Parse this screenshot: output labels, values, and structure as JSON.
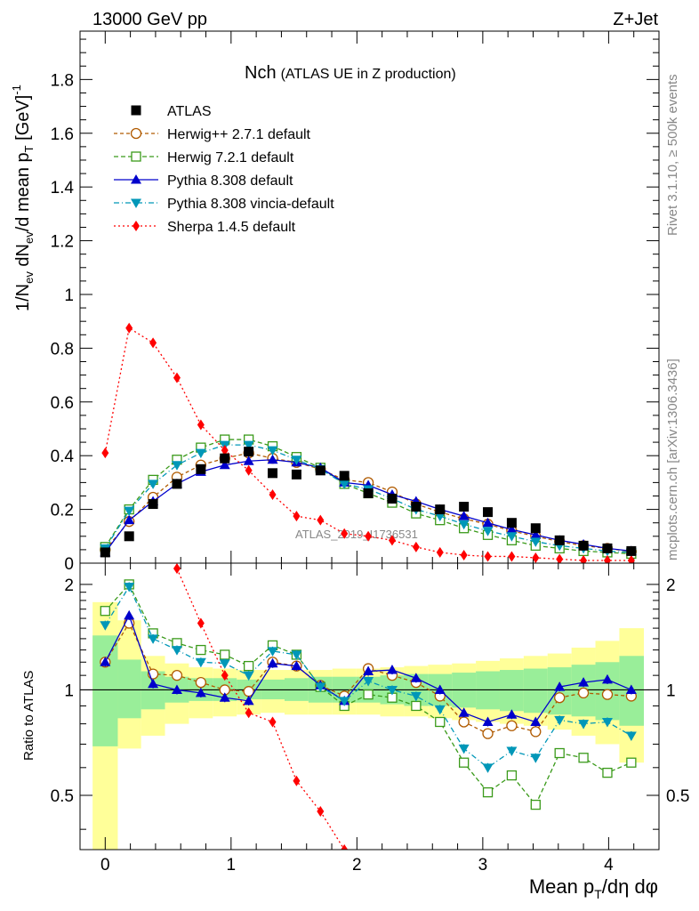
{
  "header": {
    "left": "13000 GeV pp",
    "right": "Z+Jet"
  },
  "side": {
    "rivet": "Rivet 3.1.10, ≥ 500k events",
    "mcplots": "mcplots.cern.ch [arXiv:1306.3436]"
  },
  "watermark": "ATLAS_2019_I1736531",
  "chart_data": {
    "type": "scatter",
    "title": "Nch",
    "subtitle": "(ATLAS UE in Z production)",
    "xlabel": "Mean pT/dη dφ",
    "ylabel": "1/Nev dNev/d mean pT [GeV]^-1",
    "ratio_ylabel": "Ratio to ATLAS",
    "xlim": [
      -0.2,
      4.4
    ],
    "ylim": [
      0,
      1.98
    ],
    "ratio_ylim": [
      0.35,
      2.3
    ],
    "x_ticks": [
      "0",
      "1",
      "2",
      "3",
      "4"
    ],
    "y_ticks": [
      "0",
      "0.2",
      "0.4",
      "0.6",
      "0.8",
      "1",
      "1.2",
      "1.4",
      "1.6",
      "1.8"
    ],
    "ratio_ticks": [
      "0.5",
      "1",
      "2"
    ],
    "x": [
      0,
      0.19,
      0.38,
      0.57,
      0.76,
      0.95,
      1.14,
      1.33,
      1.52,
      1.71,
      1.9,
      2.09,
      2.28,
      2.47,
      2.66,
      2.85,
      3.04,
      3.23,
      3.42,
      3.61,
      3.8,
      3.99,
      4.18
    ],
    "series": [
      {
        "name": "ATLAS",
        "color": "#000000",
        "style": "data",
        "values": [
          0.04,
          0.1,
          0.22,
          0.295,
          0.35,
          0.39,
          0.415,
          0.335,
          0.33,
          0.345,
          0.325,
          0.26,
          0.24,
          0.21,
          0.2,
          0.21,
          0.19,
          0.15,
          0.13,
          0.085,
          0.065,
          0.055,
          0.045
        ],
        "ratio": [
          1,
          1,
          1,
          1,
          1,
          1,
          1,
          1,
          1,
          1,
          1,
          1,
          1,
          1,
          1,
          1,
          1,
          1,
          1,
          1,
          1,
          1,
          1
        ]
      },
      {
        "name": "Herwig++ 2.7.1 default",
        "color": "#b05a00",
        "style": "circle",
        "dash": "4,3",
        "values": [
          0.05,
          0.155,
          0.245,
          0.32,
          0.365,
          0.39,
          0.41,
          0.39,
          0.375,
          0.35,
          0.31,
          0.3,
          0.265,
          0.22,
          0.19,
          0.165,
          0.145,
          0.12,
          0.1,
          0.08,
          0.065,
          0.055,
          0.043
        ],
        "ratio": [
          1.2,
          1.55,
          1.11,
          1.1,
          1.05,
          1.0,
          0.99,
          1.2,
          1.17,
          1.03,
          0.96,
          1.15,
          1.1,
          1.05,
          0.96,
          0.81,
          0.75,
          0.79,
          0.76,
          0.95,
          0.98,
          0.97,
          0.96
        ]
      },
      {
        "name": "Herwig 7.2.1 default",
        "color": "#3a9a1a",
        "style": "square",
        "dash": "5,3",
        "values": [
          0.06,
          0.2,
          0.31,
          0.385,
          0.43,
          0.46,
          0.46,
          0.435,
          0.395,
          0.355,
          0.295,
          0.26,
          0.225,
          0.185,
          0.16,
          0.13,
          0.105,
          0.085,
          0.065,
          0.055,
          0.045,
          0.04,
          0.035
        ],
        "ratio": [
          1.68,
          2.0,
          1.45,
          1.36,
          1.3,
          1.26,
          1.17,
          1.34,
          1.26,
          1.02,
          0.9,
          0.97,
          0.95,
          0.9,
          0.81,
          0.62,
          0.51,
          0.57,
          0.47,
          0.66,
          0.64,
          0.58,
          0.62
        ]
      },
      {
        "name": "Pythia 8.308 default",
        "color": "#0000cc",
        "style": "triup",
        "dash": "",
        "values": [
          0.04,
          0.16,
          0.23,
          0.295,
          0.34,
          0.365,
          0.38,
          0.385,
          0.375,
          0.355,
          0.3,
          0.29,
          0.255,
          0.23,
          0.2,
          0.175,
          0.15,
          0.125,
          0.105,
          0.085,
          0.07,
          0.055,
          0.045
        ],
        "ratio": [
          1.2,
          1.63,
          1.04,
          1.0,
          0.98,
          0.95,
          0.93,
          1.19,
          1.17,
          1.03,
          0.93,
          1.13,
          1.14,
          1.08,
          1.0,
          0.86,
          0.81,
          0.85,
          0.81,
          1.02,
          1.05,
          1.07,
          1.0
        ]
      },
      {
        "name": "Pythia 8.308 vincia-default",
        "color": "#0097b8",
        "style": "tridown",
        "dash": "6,3,1,3",
        "values": [
          0.055,
          0.195,
          0.295,
          0.365,
          0.41,
          0.44,
          0.44,
          0.42,
          0.385,
          0.35,
          0.295,
          0.275,
          0.24,
          0.2,
          0.175,
          0.145,
          0.12,
          0.1,
          0.08,
          0.065,
          0.055,
          0.045,
          0.04
        ],
        "ratio": [
          1.53,
          1.97,
          1.4,
          1.3,
          1.2,
          1.19,
          1.1,
          1.29,
          1.26,
          1.02,
          0.93,
          1.06,
          1.0,
          0.96,
          0.88,
          0.68,
          0.6,
          0.67,
          0.64,
          0.82,
          0.8,
          0.81,
          0.74
        ]
      },
      {
        "name": "Sherpa 1.4.5 default",
        "color": "#ff0000",
        "style": "diamond",
        "dash": "2,3",
        "values": [
          0.41,
          0.875,
          0.82,
          0.69,
          0.515,
          0.42,
          0.345,
          0.255,
          0.175,
          0.16,
          0.11,
          0.1,
          0.085,
          0.06,
          0.04,
          0.03,
          0.025,
          0.025,
          0.02,
          0.015,
          0.01,
          0.01,
          0.01
        ],
        "ratio": [
          null,
          null,
          null,
          2.22,
          1.55,
          1.1,
          0.86,
          0.81,
          0.55,
          0.45,
          0.35,
          null,
          null,
          null,
          null,
          null,
          null,
          null,
          null,
          null,
          null,
          null,
          null
        ]
      }
    ],
    "band_edges": [
      -0.1,
      0.1,
      0.285,
      0.475,
      0.665,
      0.855,
      1.045,
      1.235,
      1.425,
      1.615,
      1.805,
      1.995,
      2.185,
      2.375,
      2.565,
      2.755,
      2.945,
      3.135,
      3.325,
      3.515,
      3.705,
      3.895,
      4.085,
      4.28
    ],
    "band_stat": [
      [
        0.69,
        1.43
      ],
      [
        0.83,
        1.22
      ],
      [
        0.88,
        1.13
      ],
      [
        0.92,
        1.09
      ],
      [
        0.93,
        1.08
      ],
      [
        0.93,
        1.08
      ],
      [
        0.94,
        1.07
      ],
      [
        0.94,
        1.07
      ],
      [
        0.93,
        1.08
      ],
      [
        0.92,
        1.09
      ],
      [
        0.92,
        1.09
      ],
      [
        0.92,
        1.09
      ],
      [
        0.91,
        1.1
      ],
      [
        0.9,
        1.11
      ],
      [
        0.9,
        1.11
      ],
      [
        0.89,
        1.12
      ],
      [
        0.88,
        1.13
      ],
      [
        0.87,
        1.14
      ],
      [
        0.86,
        1.15
      ],
      [
        0.85,
        1.16
      ],
      [
        0.84,
        1.18
      ],
      [
        0.82,
        1.2
      ],
      [
        0.79,
        1.25
      ]
    ],
    "band_tot": [
      [
        0.35,
        1.78
      ],
      [
        0.68,
        1.58
      ],
      [
        0.74,
        1.25
      ],
      [
        0.8,
        1.19
      ],
      [
        0.83,
        1.16
      ],
      [
        0.84,
        1.15
      ],
      [
        0.85,
        1.14
      ],
      [
        0.86,
        1.14
      ],
      [
        0.85,
        1.14
      ],
      [
        0.85,
        1.14
      ],
      [
        0.85,
        1.15
      ],
      [
        0.85,
        1.15
      ],
      [
        0.84,
        1.16
      ],
      [
        0.84,
        1.17
      ],
      [
        0.83,
        1.18
      ],
      [
        0.82,
        1.19
      ],
      [
        0.81,
        1.21
      ],
      [
        0.8,
        1.23
      ],
      [
        0.79,
        1.25
      ],
      [
        0.77,
        1.27
      ],
      [
        0.74,
        1.32
      ],
      [
        0.7,
        1.38
      ],
      [
        0.62,
        1.5
      ]
    ]
  }
}
